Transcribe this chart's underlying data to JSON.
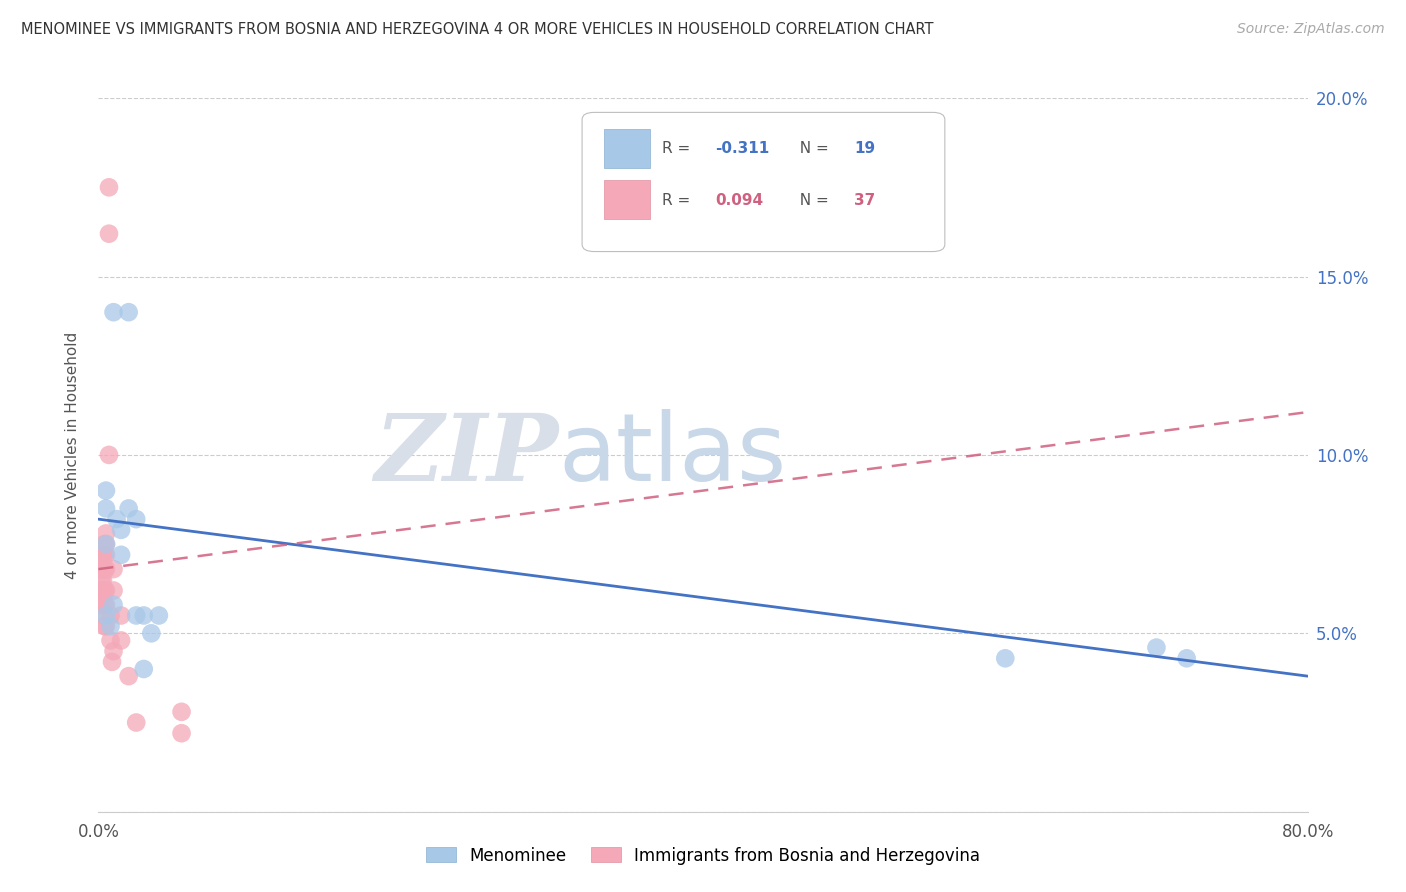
{
  "title": "MENOMINEE VS IMMIGRANTS FROM BOSNIA AND HERZEGOVINA 4 OR MORE VEHICLES IN HOUSEHOLD CORRELATION CHART",
  "source": "Source: ZipAtlas.com",
  "ylabel": "4 or more Vehicles in Household",
  "xlim": [
    0.0,
    0.8
  ],
  "ylim": [
    0.0,
    0.2
  ],
  "color_blue": "#a8c8e8",
  "color_pink": "#f4a8b8",
  "color_line_blue": "#4472C4",
  "color_line_pink": "#d06080",
  "color_r_blue": "#4472C4",
  "color_r_pink": "#d06080",
  "watermark_zip": "ZIP",
  "watermark_atlas": "atlas",
  "menominee_x": [
    0.005,
    0.01,
    0.02,
    0.005,
    0.005,
    0.005,
    0.008,
    0.01,
    0.012,
    0.015,
    0.015,
    0.02,
    0.025,
    0.025,
    0.03,
    0.03,
    0.035,
    0.04,
    0.6,
    0.7,
    0.72
  ],
  "menominee_y": [
    0.085,
    0.14,
    0.14,
    0.09,
    0.075,
    0.055,
    0.052,
    0.058,
    0.082,
    0.079,
    0.072,
    0.085,
    0.082,
    0.055,
    0.055,
    0.04,
    0.05,
    0.055,
    0.043,
    0.046,
    0.043
  ],
  "bosnia_x": [
    0.002,
    0.002,
    0.002,
    0.002,
    0.003,
    0.003,
    0.003,
    0.003,
    0.003,
    0.004,
    0.004,
    0.004,
    0.004,
    0.004,
    0.004,
    0.005,
    0.005,
    0.005,
    0.005,
    0.005,
    0.005,
    0.005,
    0.007,
    0.007,
    0.007,
    0.008,
    0.008,
    0.009,
    0.01,
    0.01,
    0.01,
    0.015,
    0.015,
    0.02,
    0.025,
    0.055,
    0.055
  ],
  "bosnia_y": [
    0.068,
    0.065,
    0.062,
    0.058,
    0.072,
    0.068,
    0.065,
    0.06,
    0.055,
    0.075,
    0.072,
    0.068,
    0.062,
    0.058,
    0.052,
    0.078,
    0.075,
    0.072,
    0.068,
    0.062,
    0.058,
    0.052,
    0.175,
    0.162,
    0.1,
    0.055,
    0.048,
    0.042,
    0.068,
    0.062,
    0.045,
    0.055,
    0.048,
    0.038,
    0.025,
    0.028,
    0.022
  ],
  "line_blue_x0": 0.0,
  "line_blue_y0": 0.082,
  "line_blue_x1": 0.8,
  "line_blue_y1": 0.038,
  "line_pink_x0": 0.0,
  "line_pink_y0": 0.068,
  "line_pink_x1": 0.8,
  "line_pink_y1": 0.112
}
